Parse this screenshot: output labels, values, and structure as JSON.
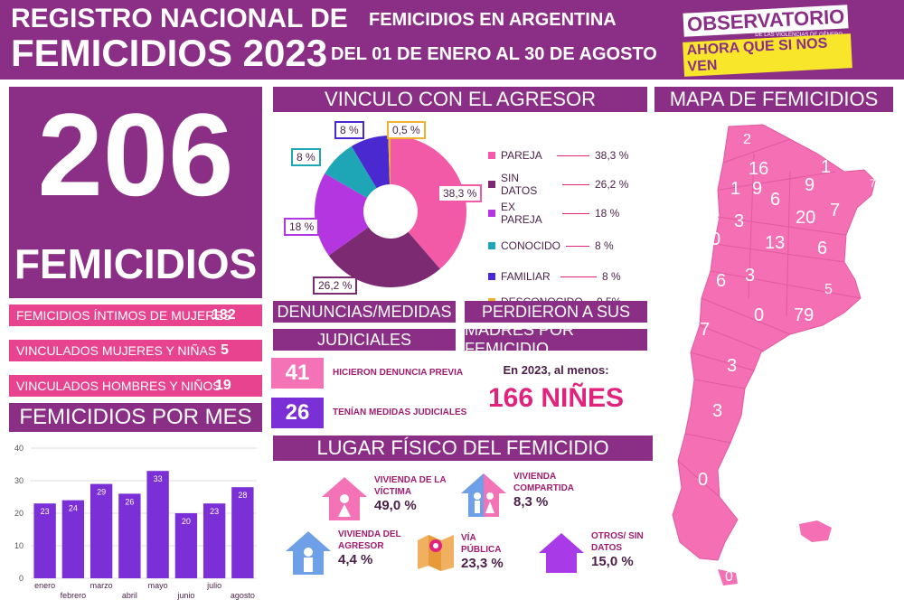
{
  "header": {
    "title_line1": "REGISTRO NACIONAL DE",
    "title_line2": "FEMICIDIOS 2023",
    "sub_line1": "FEMICIDIOS EN ARGENTINA",
    "sub_line2": "DEL 01 DE ENERO AL 30 DE AGOSTO",
    "logo_line1": "OBSERVATORIO",
    "logo_small": "DE LAS VIOLENCIAS DE GÉNERO",
    "logo_line2": "AHORA QUE SI NOS VEN"
  },
  "total": {
    "number": "206",
    "label": "FEMICIDIOS"
  },
  "breakdown": [
    {
      "label": "FEMICIDIOS ÍNTIMOS DE MUJERES",
      "value": "182"
    },
    {
      "label": "VINCULADOS MUJERES Y NIÑAS",
      "value": "5"
    },
    {
      "label": "VINCULADOS HOMBRES Y NIÑOS",
      "value": "19"
    }
  ],
  "vinculo": {
    "title": "VINCULO CON EL AGRESOR",
    "legend": [
      {
        "label": "PAREJA",
        "pct": "38,3 %"
      },
      {
        "label": "SIN DATOS",
        "pct": "26,2 %"
      },
      {
        "label": "EX PAREJA",
        "pct": "18 %"
      },
      {
        "label": "CONOCIDO",
        "pct": "8 %"
      },
      {
        "label": "FAMILIAR",
        "pct": "8 %"
      },
      {
        "label": "DESCONOCIDO",
        "pct": "0,5%"
      }
    ],
    "callouts": {
      "pareja": "38,3 %",
      "sin_datos": "26,2 %",
      "ex_pareja": "18 %",
      "conocido": "8 %",
      "familiar": "8 %",
      "desconocido": "0,5 %"
    }
  },
  "denuncias": {
    "title1": "DENUNCIAS/MEDIDAS",
    "title2": "JUDICIALES",
    "items": [
      {
        "value": "41",
        "label": "HICIERON DENUNCIA PREVIA"
      },
      {
        "value": "26",
        "label": "TENÍAN MEDIDAS JUDICIALES"
      }
    ]
  },
  "madres": {
    "title1": "PERDIERON A SUS",
    "title2": "MADRES POR FEMICIDIO",
    "text": "En 2023, al menos:",
    "value": "166 NIÑES"
  },
  "lugar": {
    "title": "LUGAR FÍSICO DEL FEMICIDIO",
    "items": [
      {
        "name1": "VIVIENDA DE LA",
        "name2": "VÍCTIMA",
        "pct": "49,0 %"
      },
      {
        "name1": "VIVIENDA",
        "name2": "COMPARTIDA",
        "pct": "8,3 %"
      },
      {
        "name1": "VIVIENDA DEL",
        "name2": "AGRESOR",
        "pct": "4,4 %"
      },
      {
        "name1": "VÍA",
        "name2": "PÚBLICA",
        "pct": "23,3 %"
      },
      {
        "name1": "OTROS/ SIN",
        "name2": "DATOS",
        "pct": "15,0 %"
      }
    ]
  },
  "mapa": {
    "title": "MAPA DE FEMICIDIOS",
    "numbers": [
      "2",
      "16",
      "1",
      "1",
      "9",
      "9",
      "7",
      "6",
      "20",
      "7",
      "3",
      "0",
      "13",
      "6",
      "3",
      "6",
      "5",
      "79",
      "0",
      "7",
      "3",
      "3",
      "0",
      "0"
    ]
  },
  "chart_data": {
    "type": "bar",
    "title": "FEMICIDIOS POR MES",
    "categories": [
      "enero",
      "febrero",
      "marzo",
      "abril",
      "mayo",
      "junio",
      "julio",
      "agosto"
    ],
    "values": [
      23,
      24,
      29,
      26,
      33,
      20,
      23,
      28
    ],
    "ylim": [
      0,
      40
    ],
    "yticks": [
      "0",
      "10",
      "20",
      "30",
      "40"
    ],
    "grid": true,
    "color": "#7b2fd6"
  },
  "pie_data": {
    "type": "pie",
    "slices": [
      {
        "name": "PAREJA",
        "value": 38.3,
        "color": "#f25aa8"
      },
      {
        "name": "SIN DATOS",
        "value": 26.2,
        "color": "#7c2b73"
      },
      {
        "name": "EX PAREJA",
        "value": 18,
        "color": "#b436e0"
      },
      {
        "name": "CONOCIDO",
        "value": 8,
        "color": "#1fa6b6"
      },
      {
        "name": "FAMILIAR",
        "value": 8,
        "color": "#4a2ad0"
      },
      {
        "name": "DESCONOCIDO",
        "value": 0.5,
        "color": "#f0b030"
      }
    ]
  },
  "colors": {
    "purple": "#8b2f86",
    "pink": "#e8438f",
    "magenta_text": "#e0237d"
  }
}
